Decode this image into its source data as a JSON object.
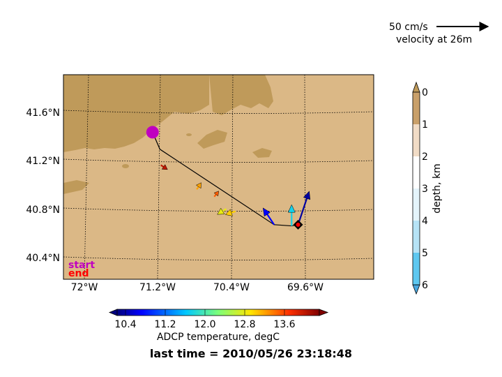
{
  "scale_ref": {
    "speed_label": "50 cm/s",
    "depth_label": "velocity at 26m"
  },
  "map": {
    "lat_labels": [
      "41.6°N",
      "41.2°N",
      "40.8°N",
      "40.4°N"
    ],
    "lon_labels": [
      "72°W",
      "71.2°W",
      "70.4°W",
      "69.6°W"
    ],
    "colors": {
      "land": "#bf9a5a",
      "ocean": "#dbb886",
      "track": "#000000",
      "start": "#c000c0",
      "end": "#ff0000"
    }
  },
  "track": {
    "points": [
      {
        "lat": 41.46,
        "lon": -71.26
      },
      {
        "lat": 41.32,
        "lon": -71.18
      },
      {
        "lat": 40.7,
        "lon": -69.94
      },
      {
        "lat": 40.69,
        "lon": -69.75
      },
      {
        "lat": 40.7,
        "lon": -69.68
      }
    ],
    "vectors": [
      {
        "lat": 41.19,
        "lon": -71.17,
        "east": 6,
        "north": -4,
        "temp": 13.7
      },
      {
        "lat": 40.99,
        "lon": -70.78,
        "east": 4,
        "north": 6,
        "temp": 12.9
      },
      {
        "lat": 40.93,
        "lon": -70.59,
        "east": 4,
        "north": 5,
        "temp": 13.2
      },
      {
        "lat": 40.83,
        "lon": -70.46,
        "east": -8,
        "north": -5,
        "temp": 12.5
      },
      {
        "lat": 40.81,
        "lon": -70.36,
        "east": -9,
        "north": -3,
        "temp": 12.7
      },
      {
        "lat": 40.7,
        "lon": -69.94,
        "east": -10,
        "north": 15,
        "temp": 10.6
      },
      {
        "lat": 40.69,
        "lon": -69.75,
        "east": 0,
        "north": 19,
        "temp": 11.5
      },
      {
        "lat": 40.7,
        "lon": -69.68,
        "east": 10,
        "north": 30,
        "temp": 10.3
      }
    ],
    "start_label": "start",
    "end_label": "end"
  },
  "depth_bar": {
    "label": "depth, km",
    "ticks": [
      "0",
      "1",
      "2",
      "3",
      "4",
      "5",
      "6"
    ]
  },
  "temp_bar": {
    "label": "ADCP temperature, degC",
    "ticks": [
      "10.4",
      "11.2",
      "12.0",
      "12.8",
      "13.6"
    ]
  },
  "last_time": "last time = 2010/05/26 23:18:48"
}
